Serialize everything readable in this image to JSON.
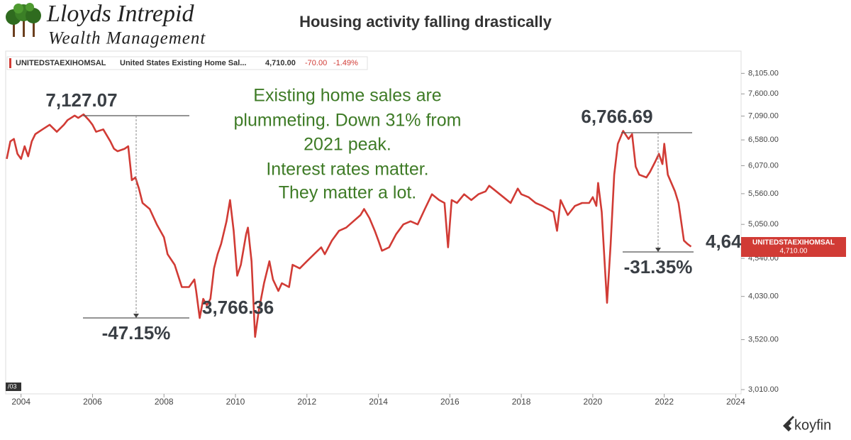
{
  "header": {
    "logo_line1": "Lloyds Intrepid",
    "logo_line2": "Wealth Management",
    "title": "Housing activity falling drastically"
  },
  "chart_data": {
    "type": "line",
    "legend": {
      "symbol": "UNITEDSTAEXIHOMSAL",
      "name": "United States Existing Home Sal...",
      "last": "4,710.00",
      "change": "-70.00",
      "change_pct": "-1.49%"
    },
    "price_tag": {
      "symbol": "UNITEDSTAEXIHOMSAL",
      "last": "4,710.00"
    },
    "corner_label": "/03",
    "callout": [
      "Existing home sales are",
      "plummeting. Down 31% from",
      "2021 peak.",
      "Interest rates matter.",
      "They matter a lot."
    ],
    "annotations": [
      "7,127.07",
      "-47.15%",
      "3,766.36",
      "6,766.69",
      "-31.35%",
      "4,64"
    ],
    "yscale": "log",
    "xlim": [
      2003.57,
      2024.15
    ],
    "ylim": [
      2970,
      8690
    ],
    "xticks": [
      2004,
      2006,
      2008,
      2010,
      2012,
      2014,
      2016,
      2018,
      2020,
      2022,
      2024
    ],
    "yticks": [
      {
        "value": 3010,
        "label": "3,010.00"
      },
      {
        "value": 3520,
        "label": "3,520.00"
      },
      {
        "value": 4030,
        "label": "4,030.00"
      },
      {
        "value": 4540,
        "label": "4,540.00"
      },
      {
        "value": 5050,
        "label": "5,050.00"
      },
      {
        "value": 5560,
        "label": "5,560.00"
      },
      {
        "value": 6070,
        "label": "6,070.00"
      },
      {
        "value": 6580,
        "label": "6,580.00"
      },
      {
        "value": 7090,
        "label": "7,090.00"
      },
      {
        "value": 7600,
        "label": "7,600.00"
      },
      {
        "value": 8105,
        "label": "8,105.00"
      }
    ],
    "x": [
      2003.6,
      2003.7,
      2003.8,
      2003.9,
      2004.0,
      2004.1,
      2004.2,
      2004.3,
      2004.4,
      2004.6,
      2004.8,
      2005.0,
      2005.2,
      2005.3,
      2005.5,
      2005.6,
      2005.75,
      2005.9,
      2006.0,
      2006.1,
      2006.3,
      2006.5,
      2006.6,
      2006.7,
      2006.9,
      2007.0,
      2007.1,
      2007.2,
      2007.3,
      2007.4,
      2007.6,
      2007.8,
      2008.0,
      2008.1,
      2008.3,
      2008.5,
      2008.7,
      2008.85,
      2008.9,
      2009.0,
      2009.1,
      2009.2,
      2009.3,
      2009.4,
      2009.5,
      2009.6,
      2009.75,
      2009.85,
      2009.95,
      2010.05,
      2010.15,
      2010.3,
      2010.35,
      2010.45,
      2010.55,
      2010.65,
      2010.8,
      2010.95,
      2011.05,
      2011.2,
      2011.3,
      2011.5,
      2011.6,
      2011.8,
      2012.0,
      2012.2,
      2012.4,
      2012.5,
      2012.7,
      2012.9,
      2013.1,
      2013.3,
      2013.5,
      2013.6,
      2013.75,
      2013.9,
      2014.0,
      2014.1,
      2014.3,
      2014.5,
      2014.7,
      2014.9,
      2015.1,
      2015.3,
      2015.5,
      2015.7,
      2015.85,
      2015.95,
      2016.05,
      2016.2,
      2016.4,
      2016.6,
      2016.8,
      2017.0,
      2017.1,
      2017.3,
      2017.5,
      2017.7,
      2017.9,
      2018.0,
      2018.2,
      2018.4,
      2018.6,
      2018.9,
      2019.0,
      2019.1,
      2019.3,
      2019.5,
      2019.7,
      2019.9,
      2020.0,
      2020.1,
      2020.15,
      2020.25,
      2020.35,
      2020.4,
      2020.5,
      2020.6,
      2020.7,
      2020.85,
      2021.0,
      2021.1,
      2021.2,
      2021.3,
      2021.5,
      2021.6,
      2021.75,
      2021.85,
      2021.95,
      2022.0,
      2022.1,
      2022.3,
      2022.4,
      2022.55,
      2022.65,
      2022.75
    ],
    "series": [
      {
        "name": "UNITEDSTAEXIHOMSAL",
        "color": "#d13b35",
        "values": [
          6200,
          6550,
          6600,
          6300,
          6200,
          6450,
          6250,
          6550,
          6700,
          6800,
          6900,
          6750,
          6900,
          7000,
          7100,
          7050,
          7127.07,
          7000,
          6900,
          6750,
          6800,
          6550,
          6400,
          6350,
          6400,
          6450,
          5800,
          5850,
          5650,
          5400,
          5300,
          5050,
          4850,
          4600,
          4450,
          4150,
          4150,
          4250,
          4100,
          3766.36,
          4000,
          3920,
          4000,
          4400,
          4600,
          4750,
          5100,
          5450,
          4950,
          4300,
          4450,
          4900,
          5000,
          4500,
          3550,
          3850,
          4200,
          4500,
          4250,
          4100,
          4200,
          4150,
          4450,
          4400,
          4500,
          4600,
          4700,
          4600,
          4800,
          4950,
          5000,
          5100,
          5200,
          5300,
          5150,
          4950,
          4800,
          4650,
          4700,
          4900,
          5050,
          5100,
          5050,
          5300,
          5550,
          5450,
          5400,
          4700,
          5450,
          5400,
          5550,
          5450,
          5550,
          5600,
          5700,
          5600,
          5500,
          5400,
          5650,
          5550,
          5500,
          5400,
          5350,
          5250,
          4950,
          5450,
          5200,
          5350,
          5400,
          5400,
          5500,
          5350,
          5750,
          5250,
          4330,
          3950,
          4750,
          5900,
          6500,
          6766.69,
          6600,
          6700,
          6050,
          5900,
          5850,
          5950,
          6150,
          6300,
          6100,
          6500,
          5900,
          5600,
          5400,
          4800,
          4750,
          4710
        ]
      }
    ]
  },
  "footer": {
    "brand": "koyfin"
  }
}
